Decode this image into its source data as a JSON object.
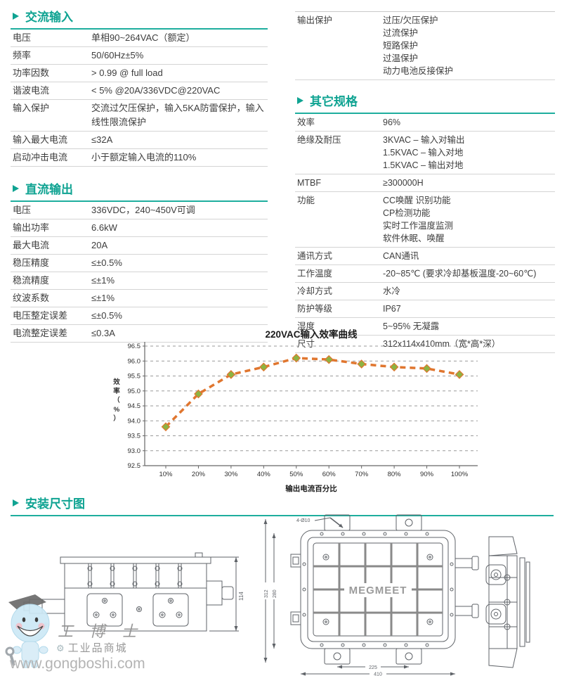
{
  "page": {
    "accent": "#0FA392",
    "line_color": "#1EAE9E",
    "table_border": "#D4D4D4"
  },
  "sections": {
    "ac_input": {
      "title": "交流输入",
      "rows": [
        {
          "label": "电压",
          "value": "单相90~264VAC（额定）"
        },
        {
          "label": "频率",
          "value": "50/60Hz±5%"
        },
        {
          "label": "功率因数",
          "value": "> 0.99 @ full load"
        },
        {
          "label": "谐波电流",
          "value": "< 5% @20A/336VDC@220VAC"
        },
        {
          "label": "输入保护",
          "value": "交流过欠压保护，输入5KA防雷保护，输入线性限流保护"
        },
        {
          "label": "输入最大电流",
          "value": "≤32A"
        },
        {
          "label": "启动冲击电流",
          "value": "小于额定输入电流的110%"
        }
      ]
    },
    "dc_output": {
      "title": "直流输出",
      "rows": [
        {
          "label": "电压",
          "value": "336VDC，240~450V可调"
        },
        {
          "label": "输出功率",
          "value": "6.6kW"
        },
        {
          "label": "最大电流",
          "value": "20A"
        },
        {
          "label": "稳压精度",
          "value": "≤±0.5%"
        },
        {
          "label": "稳流精度",
          "value": "≤±1%"
        },
        {
          "label": "纹波系数",
          "value": "≤±1%"
        },
        {
          "label": "电压整定误差",
          "value": "≤±0.5%"
        },
        {
          "label": "电流整定误差",
          "value": "≤0.3A"
        }
      ]
    },
    "output_protection": {
      "label": "输出保护",
      "lines": [
        "过压/欠压保护",
        "过流保护",
        "短路保护",
        "过温保护",
        "动力电池反接保护"
      ]
    },
    "other_specs": {
      "title": "其它规格",
      "rows": [
        {
          "label": "效率",
          "lines": [
            "96%"
          ]
        },
        {
          "label": "绝缘及耐压",
          "lines": [
            "3KVAC – 输入对输出",
            "1.5KVAC – 输入对地",
            "1.5KVAC – 输出对地"
          ]
        },
        {
          "label": "MTBF",
          "lines": [
            "≥300000H"
          ]
        },
        {
          "label": "功能",
          "lines": [
            "CC唤醒 识别功能",
            "CP检测功能",
            "实时工作温度监测",
            "软件休眠、唤醒"
          ]
        },
        {
          "label": "通讯方式",
          "lines": [
            "CAN通讯"
          ]
        },
        {
          "label": "工作温度",
          "lines": [
            "-20~85℃ (要求冷却基板温度-20~60℃)"
          ]
        },
        {
          "label": "冷却方式",
          "lines": [
            "水冷"
          ]
        },
        {
          "label": "防护等级",
          "lines": [
            "IP67"
          ]
        },
        {
          "label": "湿度",
          "lines": [
            "5~95% 无凝露"
          ]
        },
        {
          "label": "尺寸",
          "lines": [
            "312x114x410mm（宽*高*深）"
          ]
        }
      ]
    },
    "installation": {
      "title": "安装尺寸图"
    }
  },
  "chart_data": {
    "type": "line",
    "title": "220VAC输入效率曲线",
    "xlabel": "输出电流百分比",
    "ylabel": "效率（%）",
    "categories": [
      "10%",
      "20%",
      "30%",
      "40%",
      "50%",
      "60%",
      "70%",
      "80%",
      "90%",
      "100%"
    ],
    "series": [
      {
        "name": "效率",
        "values": [
          93.8,
          94.9,
          95.55,
          95.8,
          96.1,
          96.05,
          95.9,
          95.8,
          95.75,
          95.55
        ]
      }
    ],
    "ylim": [
      92.5,
      96.5
    ],
    "yticks": [
      92.5,
      93.0,
      93.5,
      94.0,
      94.5,
      95.0,
      95.5,
      96.0,
      96.5
    ],
    "grid": true,
    "legend_position": "none",
    "line_color": "#E0762F",
    "marker_color": "#8DB342"
  },
  "drawings": {
    "brand_label": "MEGMEET",
    "hole_callout": "4-Ø10",
    "dim_height": "114",
    "dim_width_outer": "312",
    "dim_width_inner": "280",
    "dim_hole_span": "225",
    "dim_depth": "410",
    "registered_mark": "®"
  },
  "watermark": {
    "name": "工 博 士",
    "subtitle": "工业品商城",
    "url": "www.gongboshi.com"
  }
}
